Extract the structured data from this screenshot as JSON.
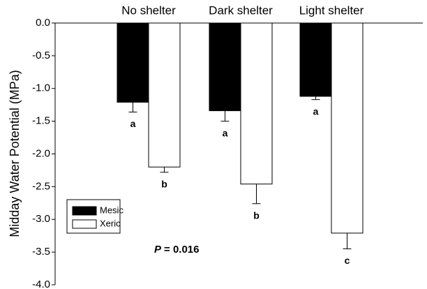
{
  "chart_data": {
    "type": "bar",
    "ylabel": "Midday Water Potential (MPa)",
    "categories": [
      "No shelter",
      "Dark shelter",
      "Light shelter"
    ],
    "series": [
      {
        "name": "Mesic",
        "color": "#000000",
        "values": [
          -1.21,
          -1.34,
          -1.12
        ],
        "errors": [
          0.15,
          0.16,
          0.05
        ],
        "letters": [
          "a",
          "a",
          "a"
        ]
      },
      {
        "name": "Xeric",
        "color": "#ffffff",
        "values": [
          -2.2,
          -2.46,
          -3.21
        ],
        "errors": [
          0.08,
          0.3,
          0.24
        ],
        "letters": [
          "b",
          "b",
          "c"
        ]
      }
    ],
    "ylim": [
      -4,
      0
    ],
    "yticks": [
      {
        "value": 0,
        "label": "0.0"
      },
      -0.5,
      {
        "value": -1,
        "label": "-1.0"
      },
      -1.5,
      {
        "value": -2,
        "label": "-2.0"
      },
      -2.5,
      {
        "value": -3,
        "label": "-3.0"
      },
      -3.5,
      {
        "value": -4,
        "label": "-4.0"
      }
    ],
    "annotation": [
      "P",
      "= 0.016"
    ],
    "grid": false,
    "legend": "lower left"
  }
}
